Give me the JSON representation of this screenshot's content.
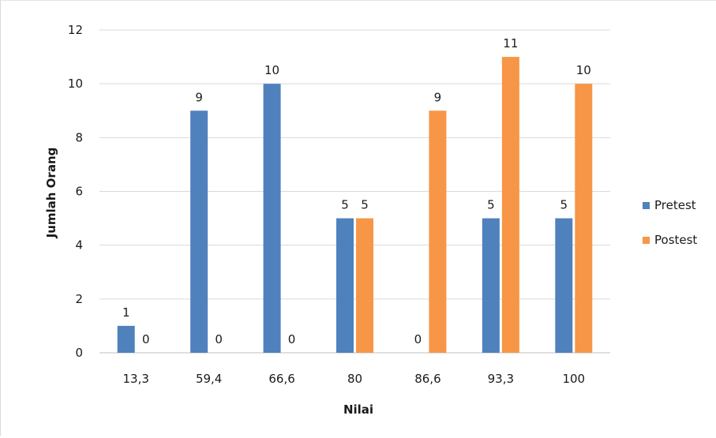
{
  "chart_data": {
    "type": "bar",
    "title": "",
    "xlabel": "Nilai",
    "ylabel": "Jumlah Orang",
    "categories": [
      "13,3",
      "59,4",
      "66,6",
      "80",
      "86,6",
      "93,3",
      "100"
    ],
    "series": [
      {
        "name": "Pretest",
        "color": "#4f81bd",
        "values": [
          1,
          9,
          10,
          5,
          0,
          5,
          5
        ]
      },
      {
        "name": "Postest",
        "color": "#f79646",
        "values": [
          0,
          0,
          0,
          5,
          9,
          11,
          10
        ]
      }
    ],
    "ylim": [
      0,
      12
    ],
    "yticks": [
      "0",
      "2",
      "4",
      "6",
      "8",
      "10",
      "12"
    ],
    "grid": true,
    "legend_position": "right"
  }
}
